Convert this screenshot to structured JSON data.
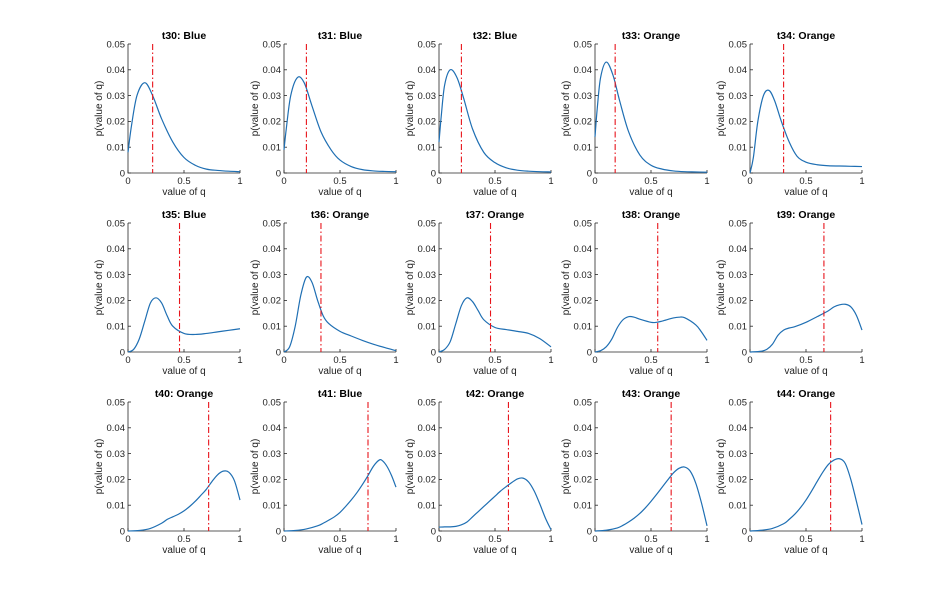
{
  "chart_data": {
    "type": "line",
    "layout": "3x5 grid of subplots",
    "xlabel": "value of q",
    "ylabel": "p(value of q)",
    "xlim": [
      0,
      1
    ],
    "ylim": [
      0,
      0.05
    ],
    "xticks": [
      0,
      0.5,
      1
    ],
    "xtick_labels": [
      "0",
      "0.5",
      "1"
    ],
    "yticks": [
      0,
      0.01,
      0.02,
      0.03,
      0.04,
      0.05
    ],
    "ytick_labels": [
      "0",
      "0.01",
      "0.02",
      "0.03",
      "0.04",
      "0.05"
    ],
    "grid": false,
    "colors": {
      "curve": "#1f6fb3",
      "marker_line": "#e8141b"
    },
    "panels": [
      {
        "title": "t30: Blue",
        "marker_x": 0.22,
        "curve": {
          "x": [
            0,
            0.03,
            0.08,
            0.15,
            0.22,
            0.3,
            0.4,
            0.5,
            0.6,
            0.7,
            0.8,
            0.9,
            1.0
          ],
          "y": [
            0.008,
            0.018,
            0.03,
            0.035,
            0.03,
            0.021,
            0.012,
            0.006,
            0.003,
            0.0015,
            0.001,
            0.0007,
            0.0005
          ]
        }
      },
      {
        "title": "t31: Blue",
        "marker_x": 0.2,
        "curve": {
          "x": [
            0,
            0.02,
            0.06,
            0.12,
            0.18,
            0.25,
            0.33,
            0.42,
            0.5,
            0.6,
            0.7,
            0.8,
            0.9,
            1.0
          ],
          "y": [
            0.009,
            0.017,
            0.03,
            0.037,
            0.035,
            0.026,
            0.016,
            0.009,
            0.005,
            0.0025,
            0.0013,
            0.0008,
            0.0006,
            0.0005
          ]
        }
      },
      {
        "title": "t32: Blue",
        "marker_x": 0.2,
        "curve": {
          "x": [
            0,
            0.02,
            0.05,
            0.1,
            0.16,
            0.22,
            0.3,
            0.4,
            0.5,
            0.6,
            0.7,
            0.8,
            0.9,
            1.0
          ],
          "y": [
            0.012,
            0.022,
            0.034,
            0.04,
            0.037,
            0.029,
            0.017,
            0.008,
            0.004,
            0.002,
            0.0011,
            0.0007,
            0.0005,
            0.0004
          ]
        }
      },
      {
        "title": "t33: Orange",
        "marker_x": 0.18,
        "curve": {
          "x": [
            0,
            0.02,
            0.05,
            0.1,
            0.16,
            0.22,
            0.3,
            0.4,
            0.5,
            0.6,
            0.7,
            0.8,
            0.9,
            1.0
          ],
          "y": [
            0.014,
            0.025,
            0.037,
            0.043,
            0.038,
            0.028,
            0.016,
            0.007,
            0.003,
            0.0015,
            0.0008,
            0.0005,
            0.0004,
            0.0003
          ]
        }
      },
      {
        "title": "t34: Orange",
        "marker_x": 0.3,
        "curve": {
          "x": [
            0,
            0.03,
            0.07,
            0.12,
            0.17,
            0.22,
            0.28,
            0.35,
            0.42,
            0.5,
            0.6,
            0.7,
            0.8,
            0.9,
            1.0
          ],
          "y": [
            0.0,
            0.006,
            0.02,
            0.03,
            0.032,
            0.028,
            0.02,
            0.012,
            0.0065,
            0.0042,
            0.0032,
            0.0028,
            0.0027,
            0.0026,
            0.0025
          ]
        }
      },
      {
        "title": "t35: Blue",
        "marker_x": 0.46,
        "curve": {
          "x": [
            0,
            0.05,
            0.1,
            0.15,
            0.2,
            0.25,
            0.3,
            0.35,
            0.4,
            0.5,
            0.6,
            0.7,
            0.8,
            0.9,
            1.0
          ],
          "y": [
            0.0,
            0.001,
            0.005,
            0.012,
            0.019,
            0.021,
            0.019,
            0.014,
            0.01,
            0.0072,
            0.0068,
            0.0072,
            0.0078,
            0.0084,
            0.009
          ]
        }
      },
      {
        "title": "t36: Orange",
        "marker_x": 0.33,
        "curve": {
          "x": [
            0,
            0.05,
            0.1,
            0.15,
            0.2,
            0.25,
            0.3,
            0.35,
            0.4,
            0.5,
            0.6,
            0.7,
            0.8,
            0.9,
            1.0
          ],
          "y": [
            0.0,
            0.002,
            0.01,
            0.022,
            0.029,
            0.027,
            0.02,
            0.014,
            0.011,
            0.008,
            0.0062,
            0.0045,
            0.003,
            0.0017,
            0.0005
          ]
        }
      },
      {
        "title": "t37: Orange",
        "marker_x": 0.46,
        "curve": {
          "x": [
            0,
            0.05,
            0.1,
            0.15,
            0.2,
            0.25,
            0.3,
            0.35,
            0.4,
            0.5,
            0.6,
            0.7,
            0.8,
            0.9,
            1.0
          ],
          "y": [
            0.0,
            0.001,
            0.004,
            0.011,
            0.018,
            0.021,
            0.0195,
            0.016,
            0.0125,
            0.0095,
            0.0087,
            0.008,
            0.0072,
            0.0052,
            0.002
          ]
        }
      },
      {
        "title": "t38: Orange",
        "marker_x": 0.56,
        "curve": {
          "x": [
            0,
            0.05,
            0.1,
            0.15,
            0.2,
            0.25,
            0.3,
            0.35,
            0.4,
            0.5,
            0.55,
            0.6,
            0.7,
            0.75,
            0.8,
            0.9,
            0.95,
            1.0
          ],
          "y": [
            0.0,
            0.0005,
            0.002,
            0.005,
            0.0095,
            0.0125,
            0.0137,
            0.0135,
            0.0127,
            0.0115,
            0.0115,
            0.012,
            0.0132,
            0.0135,
            0.0133,
            0.0105,
            0.0078,
            0.0045
          ]
        }
      },
      {
        "title": "t39: Orange",
        "marker_x": 0.66,
        "curve": {
          "x": [
            0,
            0.1,
            0.15,
            0.2,
            0.25,
            0.3,
            0.35,
            0.4,
            0.5,
            0.6,
            0.7,
            0.75,
            0.8,
            0.85,
            0.9,
            0.95,
            1.0
          ],
          "y": [
            0.0,
            0.0003,
            0.001,
            0.003,
            0.0065,
            0.0085,
            0.0093,
            0.0098,
            0.0115,
            0.0137,
            0.016,
            0.0175,
            0.0183,
            0.0185,
            0.0175,
            0.0142,
            0.0085
          ]
        }
      },
      {
        "title": "t40: Orange",
        "marker_x": 0.72,
        "curve": {
          "x": [
            0,
            0.1,
            0.2,
            0.3,
            0.35,
            0.4,
            0.45,
            0.5,
            0.55,
            0.6,
            0.65,
            0.7,
            0.75,
            0.8,
            0.85,
            0.9,
            0.95,
            1.0
          ],
          "y": [
            0.0,
            0.0002,
            0.001,
            0.003,
            0.0045,
            0.0055,
            0.0065,
            0.0078,
            0.0095,
            0.0115,
            0.0138,
            0.0162,
            0.0192,
            0.0218,
            0.0232,
            0.0228,
            0.0195,
            0.012
          ]
        }
      },
      {
        "title": "t41: Blue",
        "marker_x": 0.75,
        "curve": {
          "x": [
            0,
            0.1,
            0.2,
            0.3,
            0.35,
            0.4,
            0.45,
            0.5,
            0.55,
            0.6,
            0.65,
            0.7,
            0.75,
            0.8,
            0.85,
            0.88,
            0.92,
            0.96,
            1.0
          ],
          "y": [
            0.0,
            0.0002,
            0.0008,
            0.002,
            0.003,
            0.0042,
            0.0055,
            0.0072,
            0.0095,
            0.012,
            0.0148,
            0.018,
            0.0215,
            0.0252,
            0.0275,
            0.0272,
            0.025,
            0.0215,
            0.017
          ]
        }
      },
      {
        "title": "t42: Orange",
        "marker_x": 0.62,
        "curve": {
          "x": [
            0,
            0.05,
            0.1,
            0.15,
            0.2,
            0.25,
            0.3,
            0.35,
            0.4,
            0.45,
            0.5,
            0.55,
            0.6,
            0.65,
            0.7,
            0.75,
            0.8,
            0.85,
            0.9,
            0.95,
            1.0
          ],
          "y": [
            0.0015,
            0.0016,
            0.0016,
            0.0018,
            0.0024,
            0.0035,
            0.0055,
            0.0075,
            0.0095,
            0.0115,
            0.0135,
            0.0155,
            0.0172,
            0.0188,
            0.0202,
            0.0205,
            0.019,
            0.0155,
            0.0105,
            0.005,
            0.0005
          ]
        }
      },
      {
        "title": "t43: Orange",
        "marker_x": 0.68,
        "curve": {
          "x": [
            0,
            0.1,
            0.2,
            0.25,
            0.3,
            0.35,
            0.4,
            0.45,
            0.5,
            0.55,
            0.6,
            0.65,
            0.7,
            0.75,
            0.8,
            0.85,
            0.9,
            0.95,
            1.0
          ],
          "y": [
            0.0,
            0.0003,
            0.0012,
            0.0022,
            0.0035,
            0.005,
            0.0068,
            0.009,
            0.0115,
            0.0142,
            0.017,
            0.0198,
            0.0225,
            0.0243,
            0.0248,
            0.0232,
            0.0185,
            0.011,
            0.002
          ]
        }
      },
      {
        "title": "t44: Orange",
        "marker_x": 0.72,
        "curve": {
          "x": [
            0,
            0.1,
            0.2,
            0.3,
            0.35,
            0.4,
            0.45,
            0.5,
            0.55,
            0.6,
            0.65,
            0.7,
            0.75,
            0.8,
            0.85,
            0.9,
            0.95,
            1.0
          ],
          "y": [
            0.0,
            0.0003,
            0.001,
            0.0028,
            0.0045,
            0.0065,
            0.009,
            0.012,
            0.0155,
            0.0192,
            0.0228,
            0.0258,
            0.0275,
            0.028,
            0.0262,
            0.02,
            0.0115,
            0.0025
          ]
        }
      }
    ]
  }
}
